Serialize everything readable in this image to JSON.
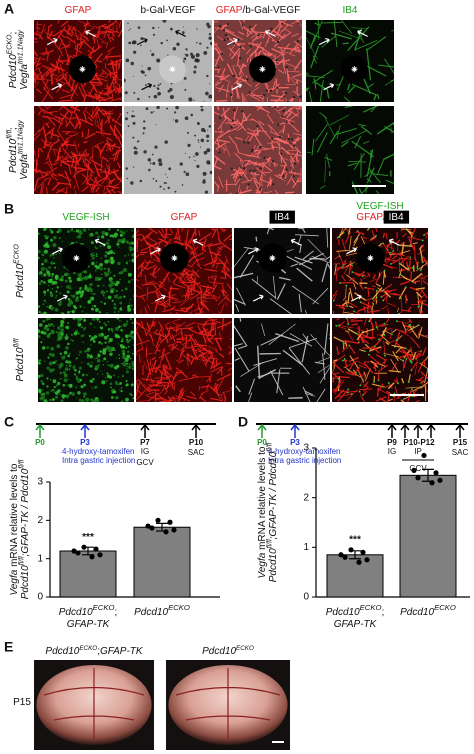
{
  "panel_a": {
    "label": "A",
    "columns": [
      [
        [
          {
            "text": "GFAP",
            "color": "#e02020"
          }
        ]
      ],
      [
        [
          {
            "text": "b-Gal-VEGF"
          }
        ]
      ],
      [
        [
          {
            "text": "GFAP",
            "color": "#e02020"
          },
          {
            "text": "/b-Gal-VEGF"
          }
        ]
      ],
      [
        [
          {
            "text": "IB4",
            "color": "#1fa01f"
          }
        ]
      ]
    ],
    "rows": [
      [
        [
          {
            "text": "Pdcd10",
            "style": "italic"
          },
          {
            "text": "ECKO",
            "style": "sup"
          },
          {
            "text": ";"
          }
        ],
        [
          {
            "text": "Vegfa",
            "style": "italic"
          },
          {
            "text": "tm1.1Nagy",
            "style": "sup"
          }
        ]
      ],
      [
        [
          {
            "text": "Pdcd10",
            "style": "italic"
          },
          {
            "text": "fl/fl",
            "style": "sup"
          },
          {
            "text": ";"
          }
        ],
        [
          {
            "text": "Vegfa",
            "style": "italic"
          },
          {
            "text": "tm1.1Nagy",
            "style": "sup"
          }
        ]
      ]
    ]
  },
  "panel_b": {
    "label": "B",
    "columns": [
      [
        [
          {
            "text": "VEGF-ISH",
            "color": "#1fa01f"
          }
        ]
      ],
      [
        [
          {
            "text": "GFAP",
            "color": "#e02020"
          }
        ]
      ],
      [
        [
          {
            "text": "IB4",
            "style": "boxed"
          }
        ]
      ],
      [
        [
          {
            "text": "VEGF-ISH",
            "color": "#1fa01f"
          }
        ],
        [
          {
            "text": "GFAP",
            "color": "#e02020"
          },
          {
            "text": "/ "
          },
          {
            "text": "IB4",
            "style": "boxed"
          }
        ]
      ]
    ],
    "rows": [
      [
        [
          {
            "text": "Pdcd10",
            "style": "italic"
          },
          {
            "text": "ECKO",
            "style": "sup"
          }
        ]
      ],
      [
        [
          {
            "text": "Pdcd10",
            "style": "italic"
          },
          {
            "text": "fl/fl",
            "style": "sup"
          }
        ]
      ]
    ]
  },
  "chart_data": [
    {
      "type": "bar",
      "panel_label": "C",
      "timeline": {
        "events": [
          "P0",
          "P3",
          "P7",
          "P10"
        ],
        "notes": [
          "4-hydroxy-tamoxifen",
          "Intra gastric injection",
          "IG",
          "GCV",
          "SAC"
        ]
      },
      "ylabel": [
        [
          {
            "text": "Vegfa",
            "style": "italic"
          },
          {
            "text": " mRNA relative levels to"
          }
        ],
        [
          {
            "text": "Pdcd10",
            "style": "italic"
          },
          {
            "text": "fl/fl",
            "style": "sup"
          },
          {
            "text": ";GFAP-TK / ",
            "style": "italic"
          },
          {
            "text": "Pdcd10",
            "style": "italic"
          },
          {
            "text": "fl/fl",
            "style": "sup"
          }
        ]
      ],
      "categories": [
        [
          [
            {
              "text": "Pdcd10",
              "style": "italic"
            },
            {
              "text": "ECKO",
              "style": "sup"
            },
            {
              "text": ";"
            }
          ],
          [
            {
              "text": "GFAP-TK",
              "style": "italic"
            }
          ]
        ],
        [
          [
            {
              "text": "Pdcd10",
              "style": "italic"
            },
            {
              "text": "ECKO",
              "style": "sup"
            }
          ]
        ]
      ],
      "values": [
        1.2,
        1.82
      ],
      "errors": [
        0.1,
        0.1
      ],
      "points": [
        [
          1.3,
          1.25,
          1.15,
          1.05,
          1.1,
          1.2
        ],
        [
          2.0,
          1.95,
          1.8,
          1.7,
          1.75,
          1.85
        ]
      ],
      "annotation": "***",
      "color": "#808080",
      "ylim": [
        0,
        3
      ],
      "yticks": [
        0,
        1,
        2,
        3
      ]
    },
    {
      "type": "bar",
      "panel_label": "D",
      "timeline": {
        "events": [
          "P0",
          "P3",
          "P9",
          "P10-P12",
          "P15"
        ],
        "notes": [
          "4-hydroxy-tamoxifen",
          "Intra gastric injection",
          "IG",
          "IP",
          "GCV",
          "SAC"
        ]
      },
      "ylabel": [
        [
          {
            "text": "Vegfa",
            "style": "italic"
          },
          {
            "text": " mRNA relative levels to"
          }
        ],
        [
          {
            "text": "Pdcd10",
            "style": "italic"
          },
          {
            "text": "fl/fl",
            "style": "sup"
          },
          {
            "text": ";GFAP-TK / ",
            "style": "italic"
          },
          {
            "text": "Pdcd10",
            "style": "italic"
          },
          {
            "text": "fl/fl",
            "style": "sup"
          }
        ]
      ],
      "categories": [
        [
          [
            {
              "text": "Pdcd10",
              "style": "italic"
            },
            {
              "text": "ECKO",
              "style": "sup"
            },
            {
              "text": ";"
            }
          ],
          [
            {
              "text": "GFAP-TK",
              "style": "italic"
            }
          ]
        ],
        [
          [
            {
              "text": "Pdcd10",
              "style": "italic"
            },
            {
              "text": "ECKO",
              "style": "sup"
            }
          ]
        ]
      ],
      "values": [
        0.85,
        2.45
      ],
      "errors": [
        0.08,
        0.12
      ],
      "points": [
        [
          0.95,
          0.9,
          0.8,
          0.7,
          0.75,
          0.85
        ],
        [
          2.85,
          2.5,
          2.4,
          2.3,
          2.35,
          2.55
        ]
      ],
      "annotation": "***",
      "color": "#808080",
      "ylim": [
        0,
        3
      ],
      "yticks": [
        0,
        1,
        2,
        3
      ]
    }
  ],
  "panel_e": {
    "label": "E",
    "columns": [
      [
        [
          {
            "text": "Pdcd10",
            "style": "italic"
          },
          {
            "text": "ECKO",
            "style": "sup"
          },
          {
            "text": ";"
          },
          {
            "text": "GFAP-TK",
            "style": "italic"
          }
        ]
      ],
      [
        [
          {
            "text": "Pdcd10",
            "style": "italic"
          },
          {
            "text": "ECKO",
            "style": "sup"
          }
        ]
      ]
    ],
    "rows": [
      [
        [
          {
            "text": "P15"
          }
        ]
      ]
    ]
  }
}
